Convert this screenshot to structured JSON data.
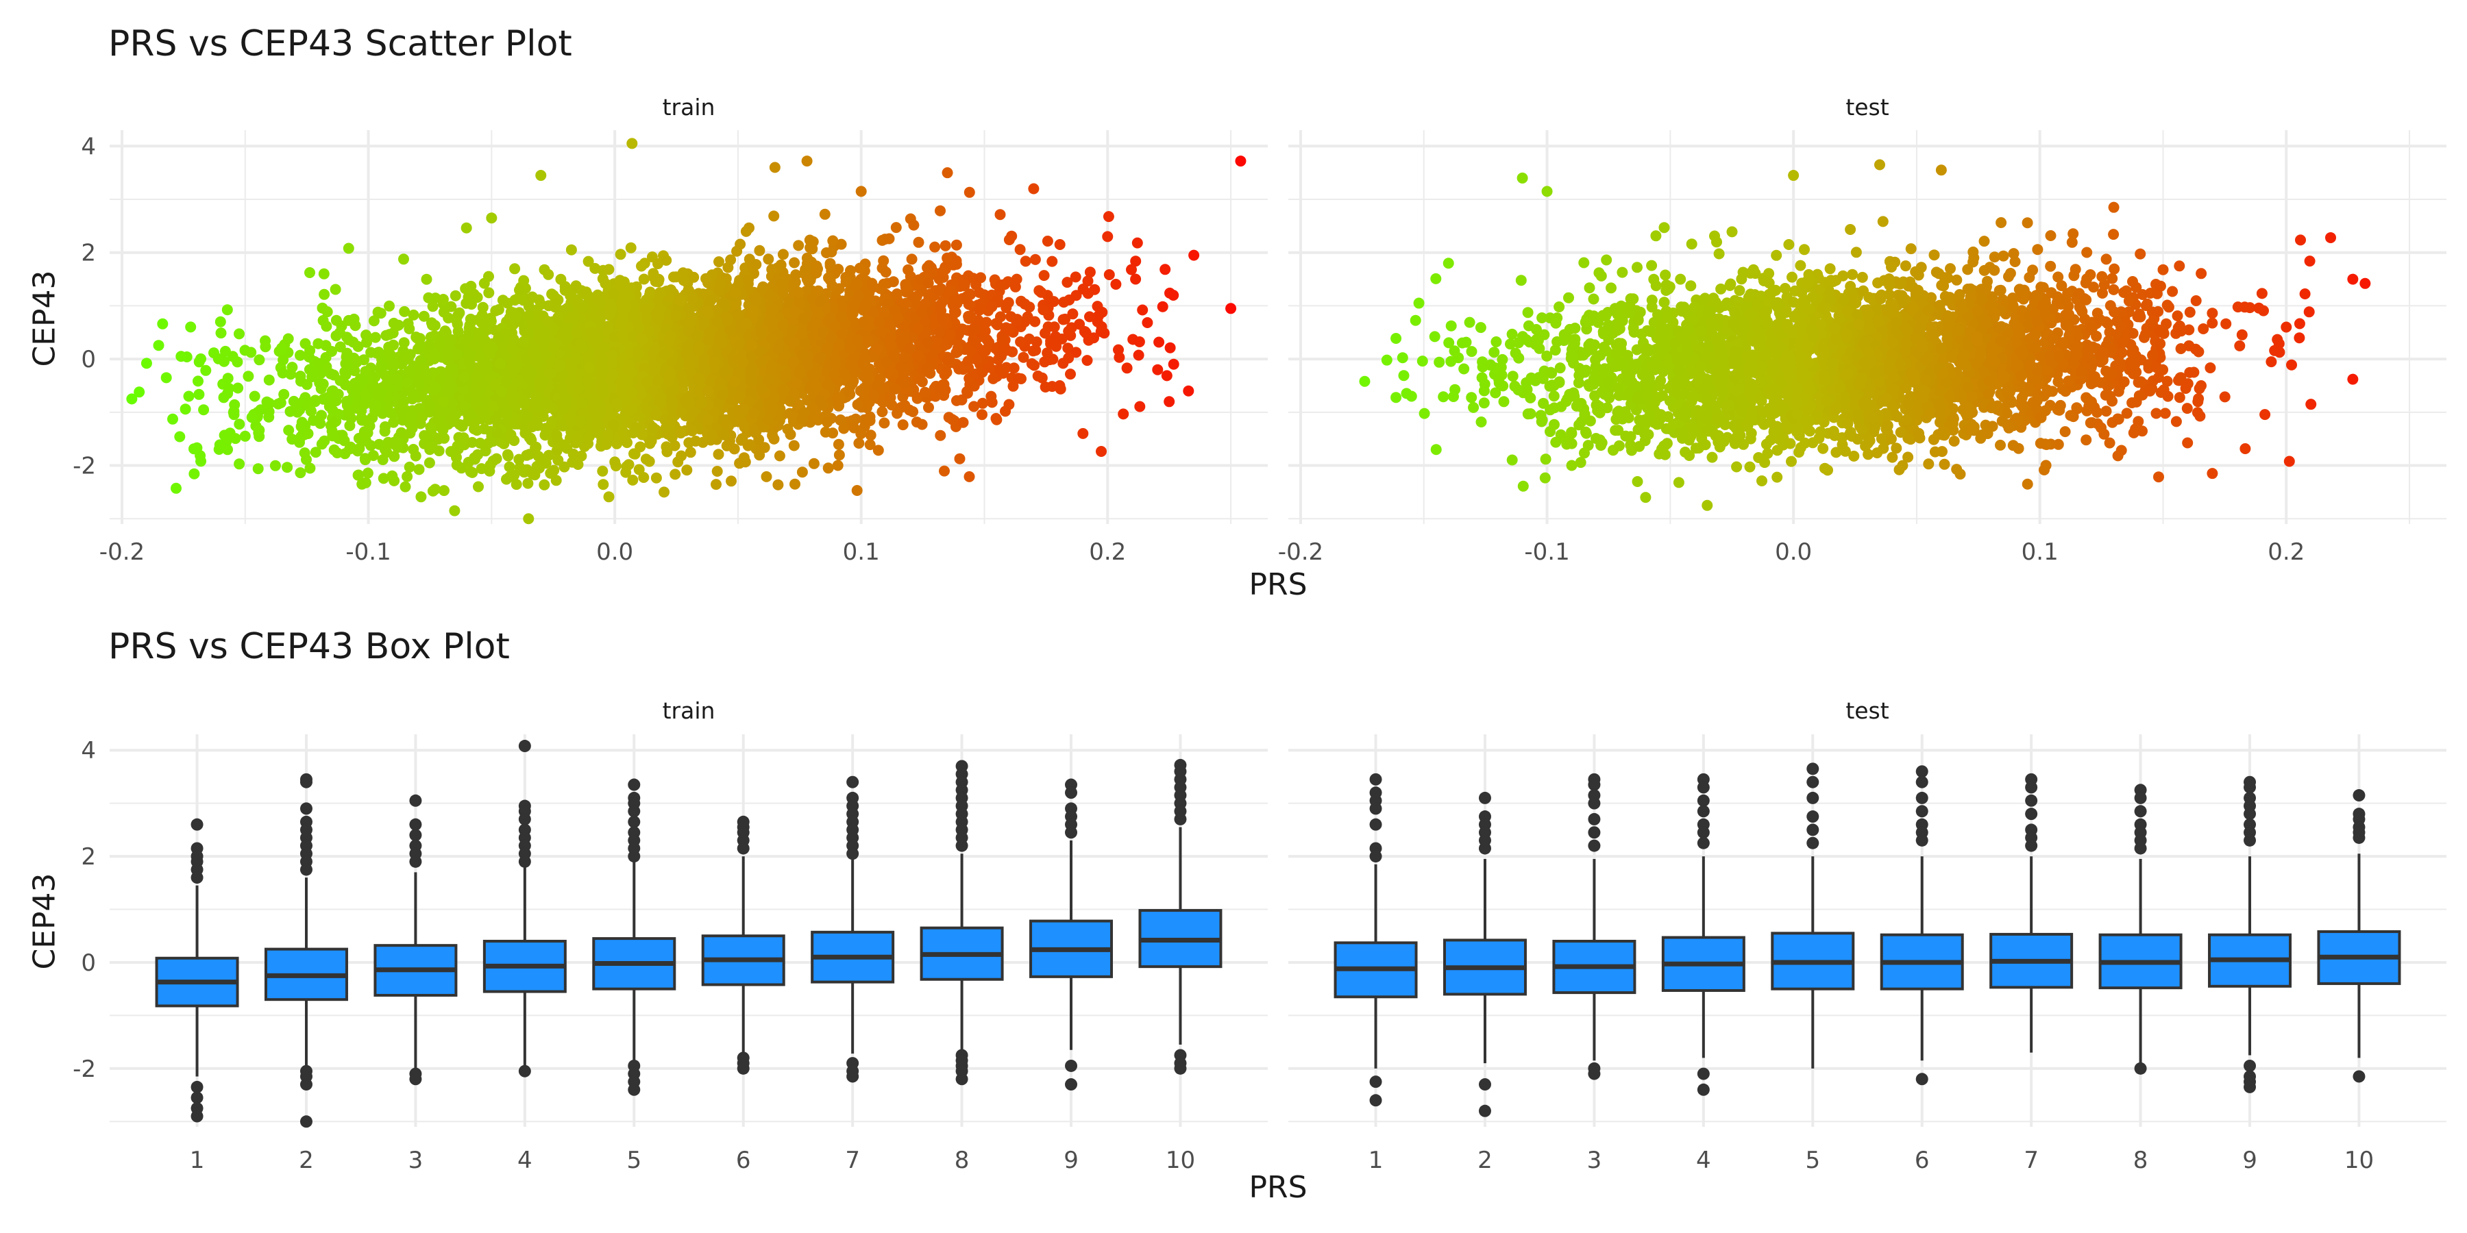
{
  "scatter_title": "PRS vs CEP43 Scatter Plot",
  "box_title": "PRS vs CEP43 Box Plot",
  "xlabel": "PRS",
  "ylabel": "CEP43",
  "facets": [
    "train",
    "test"
  ],
  "colors": {
    "grid": "#ebebeb",
    "box_fill": "#1e90ff",
    "box_line": "#333333",
    "low": "#66ff00",
    "mid": "#b8b800",
    "high": "#ff0000"
  },
  "chart_data": [
    {
      "type": "scatter",
      "title": "PRS vs CEP43 Scatter Plot",
      "xlabel": "PRS",
      "ylabel": "CEP43",
      "facets": [
        "train",
        "test"
      ],
      "x_ticks": [
        -0.2,
        -0.1,
        0.0,
        0.1,
        0.2
      ],
      "y_ticks": [
        -2,
        0,
        2,
        4
      ],
      "xlim": [
        -0.205,
        0.265
      ],
      "ylim": [
        -3.1,
        4.3
      ],
      "color_scale": {
        "by": "PRS",
        "low": "#66ff00",
        "mid": "#b8b800",
        "high": "#ff0000"
      },
      "series": [
        {
          "name": "train",
          "x_range": [
            -0.196,
            0.254
          ],
          "y_range": [
            -3.0,
            4.1
          ],
          "slope": 4.0,
          "outliers": [
            {
              "x": -0.196,
              "y": -0.75
            },
            {
              "x": -0.193,
              "y": -0.62
            },
            {
              "x": -0.19,
              "y": -0.08
            },
            {
              "x": -0.182,
              "y": -0.35
            },
            {
              "x": -0.176,
              "y": 0.05
            },
            {
              "x": -0.168,
              "y": -1.92
            },
            {
              "x": -0.16,
              "y": 0.7
            },
            {
              "x": -0.15,
              "y": -1.45
            },
            {
              "x": -0.118,
              "y": 1.6
            },
            {
              "x": -0.108,
              "y": 2.08
            },
            {
              "x": -0.085,
              "y": -2.4
            },
            {
              "x": -0.065,
              "y": -2.85
            },
            {
              "x": -0.05,
              "y": 2.65
            },
            {
              "x": -0.035,
              "y": -3.0
            },
            {
              "x": -0.03,
              "y": 3.45
            },
            {
              "x": 0.007,
              "y": 4.05
            },
            {
              "x": 0.02,
              "y": -2.5
            },
            {
              "x": 0.065,
              "y": 3.6
            },
            {
              "x": 0.078,
              "y": 3.72
            },
            {
              "x": 0.1,
              "y": 3.15
            },
            {
              "x": 0.135,
              "y": 3.5
            },
            {
              "x": 0.17,
              "y": 3.2
            },
            {
              "x": 0.19,
              "y": -1.4
            },
            {
              "x": 0.2,
              "y": 2.3
            },
            {
              "x": 0.225,
              "y": -0.8
            },
            {
              "x": 0.235,
              "y": 1.95
            },
            {
              "x": 0.25,
              "y": 0.95
            },
            {
              "x": 0.254,
              "y": 3.72
            }
          ]
        },
        {
          "name": "test",
          "x_range": [
            -0.174,
            0.232
          ],
          "y_range": [
            -2.8,
            3.7
          ],
          "slope": 1.8,
          "outliers": [
            {
              "x": -0.174,
              "y": -0.42
            },
            {
              "x": -0.165,
              "y": -0.02
            },
            {
              "x": -0.155,
              "y": -0.7
            },
            {
              "x": -0.152,
              "y": 1.05
            },
            {
              "x": -0.145,
              "y": -1.7
            },
            {
              "x": -0.14,
              "y": 1.8
            },
            {
              "x": -0.11,
              "y": 3.4
            },
            {
              "x": -0.1,
              "y": 3.15
            },
            {
              "x": -0.09,
              "y": -2.0
            },
            {
              "x": -0.06,
              "y": -2.6
            },
            {
              "x": -0.035,
              "y": -2.75
            },
            {
              "x": 0.0,
              "y": 3.45
            },
            {
              "x": 0.035,
              "y": 3.65
            },
            {
              "x": 0.06,
              "y": 3.55
            },
            {
              "x": 0.095,
              "y": -2.35
            },
            {
              "x": 0.13,
              "y": 2.85
            },
            {
              "x": 0.17,
              "y": -2.15
            },
            {
              "x": 0.2,
              "y": 0.6
            },
            {
              "x": 0.21,
              "y": -0.85
            },
            {
              "x": 0.218,
              "y": 2.28
            },
            {
              "x": 0.227,
              "y": 1.5
            },
            {
              "x": 0.232,
              "y": 1.42
            },
            {
              "x": 0.227,
              "y": -0.38
            }
          ]
        }
      ]
    },
    {
      "type": "box",
      "title": "PRS vs CEP43 Box Plot",
      "xlabel": "PRS",
      "ylabel": "CEP43",
      "facets": [
        "train",
        "test"
      ],
      "categories": [
        "1",
        "2",
        "3",
        "4",
        "5",
        "6",
        "7",
        "8",
        "9",
        "10"
      ],
      "y_ticks": [
        -2,
        0,
        2,
        4
      ],
      "ylim": [
        -3.1,
        4.3
      ],
      "series": [
        {
          "name": "train",
          "boxes": [
            {
              "q1": -0.82,
              "median": -0.37,
              "q3": 0.08,
              "lower": -2.15,
              "upper": 1.45,
              "outliers": [
                2.6,
                2.15,
                2.0,
                1.9,
                1.75,
                1.6,
                -2.35,
                -2.55,
                -2.75,
                -2.9
              ]
            },
            {
              "q1": -0.7,
              "median": -0.25,
              "q3": 0.25,
              "lower": -1.98,
              "upper": 1.6,
              "outliers": [
                3.45,
                3.4,
                2.9,
                2.65,
                2.5,
                2.35,
                2.2,
                2.05,
                1.9,
                1.75,
                -2.05,
                -2.15,
                -2.3,
                -3.0
              ]
            },
            {
              "q1": -0.62,
              "median": -0.14,
              "q3": 0.32,
              "lower": -2.05,
              "upper": 1.7,
              "outliers": [
                3.05,
                2.6,
                2.4,
                2.2,
                2.05,
                1.9,
                -2.1,
                -2.2
              ]
            },
            {
              "q1": -0.55,
              "median": -0.07,
              "q3": 0.4,
              "lower": -1.95,
              "upper": 1.8,
              "outliers": [
                4.08,
                2.95,
                2.85,
                2.7,
                2.5,
                2.35,
                2.2,
                2.05,
                1.9,
                -2.05
              ]
            },
            {
              "q1": -0.5,
              "median": -0.02,
              "q3": 0.45,
              "lower": -1.85,
              "upper": 1.9,
              "outliers": [
                3.35,
                3.1,
                3.0,
                2.85,
                2.65,
                2.45,
                2.3,
                2.15,
                2.0,
                -1.95,
                -2.1,
                -2.25,
                -2.4
              ]
            },
            {
              "q1": -0.42,
              "median": 0.05,
              "q3": 0.5,
              "lower": -1.75,
              "upper": 2.0,
              "outliers": [
                2.65,
                2.55,
                2.45,
                2.3,
                2.15,
                -1.8,
                -1.9,
                -2.0
              ]
            },
            {
              "q1": -0.37,
              "median": 0.1,
              "q3": 0.57,
              "lower": -1.72,
              "upper": 1.95,
              "outliers": [
                3.4,
                3.1,
                2.95,
                2.8,
                2.65,
                2.5,
                2.35,
                2.2,
                2.05,
                -1.9,
                -2.05,
                -2.15
              ]
            },
            {
              "q1": -0.32,
              "median": 0.15,
              "q3": 0.65,
              "lower": -1.65,
              "upper": 2.05,
              "outliers": [
                3.7,
                3.55,
                3.4,
                3.25,
                3.1,
                2.95,
                2.8,
                2.65,
                2.5,
                2.35,
                2.2,
                -1.75,
                -1.85,
                -1.95,
                -2.05,
                -2.2
              ]
            },
            {
              "q1": -0.27,
              "median": 0.24,
              "q3": 0.78,
              "lower": -1.65,
              "upper": 2.3,
              "outliers": [
                3.35,
                3.2,
                2.9,
                2.75,
                2.6,
                2.45,
                -1.95,
                -2.3
              ]
            },
            {
              "q1": -0.08,
              "median": 0.42,
              "q3": 0.98,
              "lower": -1.55,
              "upper": 2.55,
              "outliers": [
                3.72,
                3.6,
                3.45,
                3.3,
                3.15,
                3.0,
                2.85,
                2.7,
                -1.75,
                -1.9,
                -2.0
              ]
            }
          ]
        },
        {
          "name": "test",
          "boxes": [
            {
              "q1": -0.65,
              "median": -0.12,
              "q3": 0.37,
              "lower": -2.0,
              "upper": 1.85,
              "outliers": [
                3.45,
                3.2,
                3.05,
                2.9,
                2.6,
                2.15,
                2.0,
                -2.25,
                -2.6
              ]
            },
            {
              "q1": -0.6,
              "median": -0.1,
              "q3": 0.42,
              "lower": -1.9,
              "upper": 1.95,
              "outliers": [
                3.1,
                2.75,
                2.6,
                2.45,
                2.3,
                2.15,
                -2.3,
                -2.8
              ]
            },
            {
              "q1": -0.57,
              "median": -0.08,
              "q3": 0.4,
              "lower": -1.85,
              "upper": 1.95,
              "outliers": [
                3.45,
                3.35,
                3.15,
                3.0,
                2.7,
                2.45,
                2.2,
                -2.0,
                -2.1
              ]
            },
            {
              "q1": -0.53,
              "median": -0.03,
              "q3": 0.47,
              "lower": -1.8,
              "upper": 2.0,
              "outliers": [
                3.45,
                3.3,
                3.05,
                2.85,
                2.6,
                2.45,
                2.25,
                -2.1,
                -2.4
              ]
            },
            {
              "q1": -0.5,
              "median": 0.0,
              "q3": 0.55,
              "lower": -2.0,
              "upper": 2.0,
              "outliers": [
                3.65,
                3.4,
                3.1,
                2.75,
                2.5,
                2.25
              ]
            },
            {
              "q1": -0.5,
              "median": 0.0,
              "q3": 0.52,
              "lower": -1.85,
              "upper": 2.0,
              "outliers": [
                3.6,
                3.4,
                3.1,
                2.85,
                2.6,
                2.45,
                2.3,
                -2.2
              ]
            },
            {
              "q1": -0.47,
              "median": 0.02,
              "q3": 0.53,
              "lower": -1.7,
              "upper": 2.0,
              "outliers": [
                3.45,
                3.3,
                3.05,
                2.8,
                2.5,
                2.35,
                2.2
              ]
            },
            {
              "q1": -0.48,
              "median": 0.0,
              "q3": 0.52,
              "lower": -1.95,
              "upper": 1.95,
              "outliers": [
                3.25,
                3.1,
                2.85,
                2.6,
                2.45,
                2.3,
                2.15,
                -2.0
              ]
            },
            {
              "q1": -0.45,
              "median": 0.05,
              "q3": 0.52,
              "lower": -1.75,
              "upper": 2.0,
              "outliers": [
                3.4,
                3.3,
                3.1,
                2.95,
                2.8,
                2.6,
                2.45,
                2.3,
                -1.95,
                -2.15,
                -2.25,
                -2.35
              ]
            },
            {
              "q1": -0.4,
              "median": 0.1,
              "q3": 0.58,
              "lower": -1.8,
              "upper": 2.05,
              "outliers": [
                3.15,
                2.8,
                2.7,
                2.55,
                2.45,
                2.35,
                -2.15
              ]
            }
          ]
        }
      ]
    }
  ]
}
